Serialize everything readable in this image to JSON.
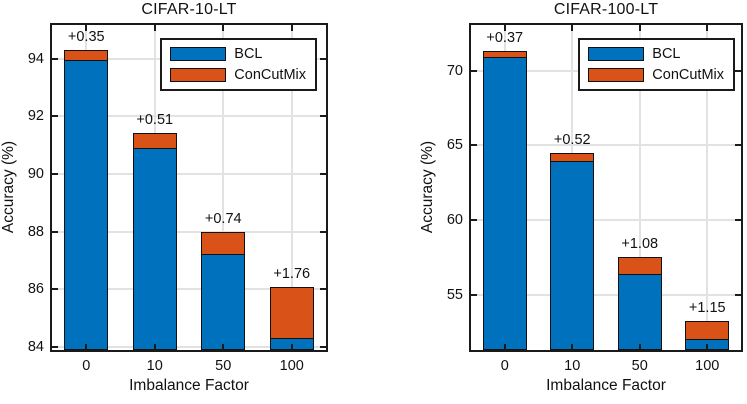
{
  "charts": [
    {
      "title": "CIFAR-10-LT",
      "xlabel": "Imbalance Factor",
      "ylabel": "Accuracy (%)",
      "chart_data": {
        "type": "bar",
        "stacked": true,
        "categories": [
          "0",
          "10",
          "50",
          "100"
        ],
        "series": [
          {
            "name": "BCL",
            "color": "#0072BD",
            "values": [
              93.97,
              90.93,
              87.26,
              84.32
            ]
          },
          {
            "name": "ConCutMix",
            "color": "#D95319",
            "stacking": "delta",
            "values": [
              0.35,
              0.51,
              0.74,
              1.76
            ]
          }
        ],
        "annotations": [
          "+0.35",
          "+0.51",
          "+0.74",
          "+1.76"
        ],
        "ylim": [
          83.9,
          95.17
        ],
        "yticks": [
          84,
          86,
          88,
          90,
          92,
          94
        ],
        "grid": true,
        "legend_position": "top-right"
      }
    },
    {
      "title": "CIFAR-100-LT",
      "xlabel": "Imbalance Factor",
      "ylabel": "Accuracy (%)",
      "chart_data": {
        "type": "bar",
        "stacked": true,
        "categories": [
          "0",
          "10",
          "50",
          "100"
        ],
        "series": [
          {
            "name": "BCL",
            "color": "#0072BD",
            "values": [
              70.92,
              63.95,
              56.45,
              52.1
            ]
          },
          {
            "name": "ConCutMix",
            "color": "#D95319",
            "stacking": "delta",
            "values": [
              0.37,
              0.52,
              1.08,
              1.15
            ]
          }
        ],
        "annotations": [
          "+0.37",
          "+0.52",
          "+1.08",
          "+1.15"
        ],
        "ylim": [
          51.3,
          73.05
        ],
        "yticks": [
          55,
          60,
          65,
          70
        ],
        "grid": true,
        "legend_position": "top-right"
      }
    }
  ],
  "colors": {
    "bcl_blue": "#0072BD",
    "concutmix_orange": "#D95319",
    "grid": "#E2E2E2",
    "axis": "#1A1A1A"
  }
}
